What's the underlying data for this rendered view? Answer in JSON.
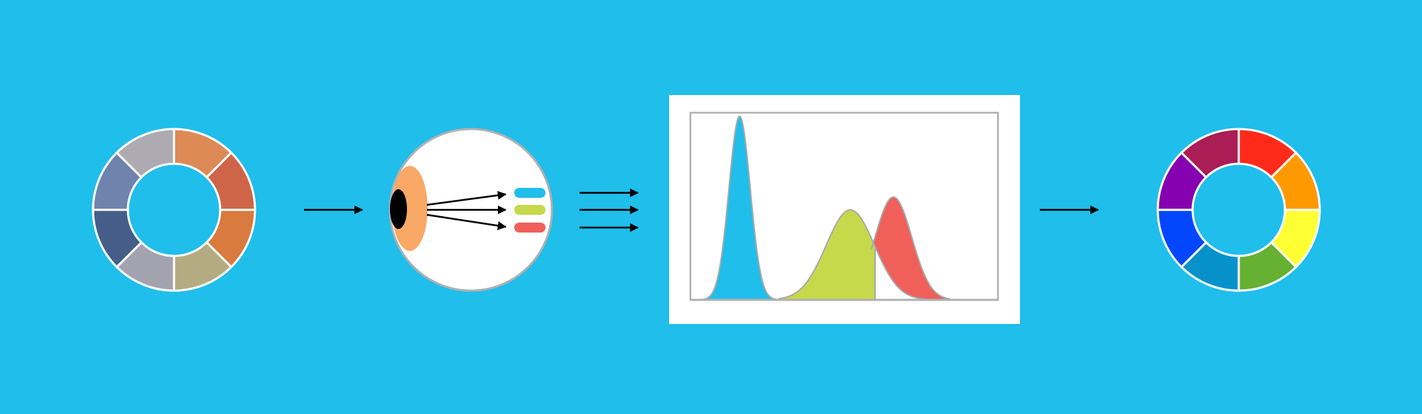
{
  "colors": {
    "background": "#1FBEEB",
    "panel": "#FFFFFF",
    "outline": "#B0B0B0",
    "arrow": "#000000",
    "eye_iris": "#F9A866",
    "eye_pupil": "#000000",
    "cone_blue": "#1FBEEB",
    "cone_green": "#C6D94A",
    "cone_red": "#F05F5A"
  },
  "input_wheel": {
    "segments": [
      {
        "name": "segment-1",
        "color": "#DD8A57"
      },
      {
        "name": "segment-2",
        "color": "#CE6548"
      },
      {
        "name": "segment-3",
        "color": "#D97A3E"
      },
      {
        "name": "segment-4",
        "color": "#B5AB82"
      },
      {
        "name": "segment-5",
        "color": "#A3A3B0"
      },
      {
        "name": "segment-6",
        "color": "#455D88"
      },
      {
        "name": "segment-7",
        "color": "#7083AC"
      },
      {
        "name": "segment-8",
        "color": "#ADABB1"
      }
    ]
  },
  "eye": {
    "receptors": [
      {
        "name": "blue-receptor",
        "color": "#1FBEEB"
      },
      {
        "name": "green-receptor",
        "color": "#C6D94A"
      },
      {
        "name": "red-receptor",
        "color": "#F05F5A"
      }
    ]
  },
  "response_chart": {
    "type": "area",
    "x_axis_labels": false,
    "y_axis_labels": false,
    "series": [
      {
        "color": "#1FBEEB",
        "peak_fraction": 0.16,
        "relative_height": 1.0
      },
      {
        "color": "#C6D94A",
        "peak_fraction": 0.52,
        "relative_height": 0.49
      },
      {
        "color": "#F05F5A",
        "peak_fraction": 0.66,
        "relative_height": 0.56
      }
    ]
  },
  "output_wheel": {
    "segments": [
      {
        "name": "segment-red",
        "color": "#FF2A1A"
      },
      {
        "name": "segment-orange",
        "color": "#FF9900"
      },
      {
        "name": "segment-yellow",
        "color": "#FFFF33"
      },
      {
        "name": "segment-green",
        "color": "#66B032"
      },
      {
        "name": "segment-teal-blue",
        "color": "#0791CB"
      },
      {
        "name": "segment-blue",
        "color": "#0247FE"
      },
      {
        "name": "segment-violet",
        "color": "#8601AF"
      },
      {
        "name": "segment-magenta",
        "color": "#AA1D55"
      }
    ]
  }
}
